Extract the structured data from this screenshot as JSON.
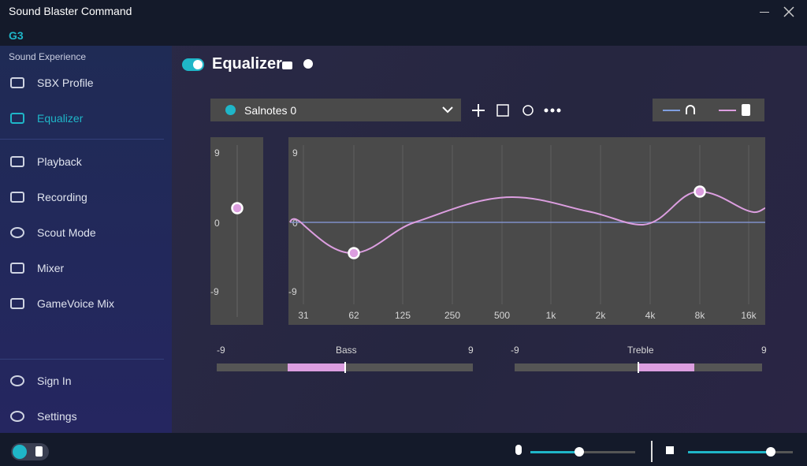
{
  "header": {
    "title": "Sound Blaster Command",
    "device": "G3"
  },
  "sidebar": {
    "section": "Sound Experience",
    "items": [
      "SBX Profile",
      "Equalizer",
      "Playback",
      "Recording",
      "Scout Mode",
      "Mixer",
      "GameVoice Mix"
    ],
    "footer_items": [
      "Sign In",
      "Settings"
    ]
  },
  "main": {
    "title": "Equalizer",
    "preset": "Salnotes 0",
    "preamp": {
      "axis_labels": [
        "9",
        "0",
        "-9"
      ]
    },
    "graph": {
      "axis_labels": [
        "9",
        "0",
        "-9"
      ],
      "bands": [
        "31",
        "62",
        "125",
        "250",
        "500",
        "1k",
        "2k",
        "4k",
        "8k",
        "16k"
      ]
    },
    "bass": {
      "label": "Bass",
      "min": "-9",
      "max": "9"
    },
    "treble": {
      "label": "Treble",
      "min": "-9",
      "max": "9"
    }
  }
}
